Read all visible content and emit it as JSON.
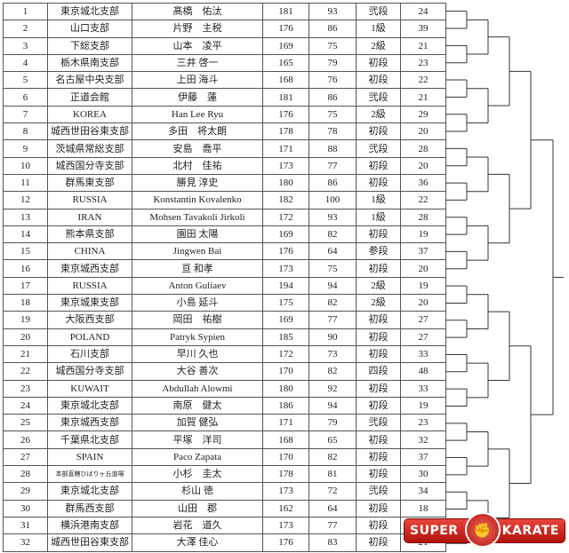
{
  "entries": [
    {
      "no": "1",
      "branch": "東京城北支部",
      "name": "髙橋　佑汰",
      "height": "181",
      "weight": "93",
      "rank": "弐段",
      "age": "24"
    },
    {
      "no": "2",
      "branch": "山口支部",
      "name": "片野　主税",
      "height": "176",
      "weight": "86",
      "rank": "1級",
      "age": "39"
    },
    {
      "no": "3",
      "branch": "下総支部",
      "name": "山本　凌平",
      "height": "169",
      "weight": "75",
      "rank": "2級",
      "age": "21"
    },
    {
      "no": "4",
      "branch": "栃木県南支部",
      "name": "三井 啓一",
      "height": "165",
      "weight": "79",
      "rank": "初段",
      "age": "23"
    },
    {
      "no": "5",
      "branch": "名古屋中央支部",
      "name": "上田 海斗",
      "height": "168",
      "weight": "76",
      "rank": "初段",
      "age": "22"
    },
    {
      "no": "6",
      "branch": "正道会館",
      "name": "伊藤　蓮",
      "height": "181",
      "weight": "86",
      "rank": "弐段",
      "age": "21"
    },
    {
      "no": "7",
      "branch": "KOREA",
      "name": "Han Lee Ryu",
      "height": "176",
      "weight": "75",
      "rank": "2級",
      "age": "29"
    },
    {
      "no": "8",
      "branch": "城西世田谷東支部",
      "name": "多田　将太朗",
      "height": "178",
      "weight": "78",
      "rank": "初段",
      "age": "20"
    },
    {
      "no": "9",
      "branch": "茨城県常総支部",
      "name": "安島　喬平",
      "height": "171",
      "weight": "88",
      "rank": "弐段",
      "age": "28"
    },
    {
      "no": "10",
      "branch": "城西国分寺支部",
      "name": "北村　佳祐",
      "height": "173",
      "weight": "77",
      "rank": "初段",
      "age": "20"
    },
    {
      "no": "11",
      "branch": "群馬東支部",
      "name": "勝見 淳史",
      "height": "180",
      "weight": "86",
      "rank": "初段",
      "age": "36"
    },
    {
      "no": "12",
      "branch": "RUSSIA",
      "name": "Konstantin Kovalenko",
      "height": "182",
      "weight": "100",
      "rank": "1級",
      "age": "22"
    },
    {
      "no": "13",
      "branch": "IRAN",
      "name": "Mohsen Tavakoli Jirkoli",
      "height": "172",
      "weight": "93",
      "rank": "1級",
      "age": "28"
    },
    {
      "no": "14",
      "branch": "熊本県支部",
      "name": "園田 太陽",
      "height": "169",
      "weight": "82",
      "rank": "初段",
      "age": "19"
    },
    {
      "no": "15",
      "branch": "CHINA",
      "name": "Jingwen Bai",
      "height": "176",
      "weight": "64",
      "rank": "参段",
      "age": "37"
    },
    {
      "no": "16",
      "branch": "東京城西支部",
      "name": "亘 和孝",
      "height": "173",
      "weight": "75",
      "rank": "初段",
      "age": "20"
    },
    {
      "no": "17",
      "branch": "RUSSIA",
      "name": "Anton Guliaev",
      "height": "194",
      "weight": "94",
      "rank": "2級",
      "age": "19"
    },
    {
      "no": "18",
      "branch": "東京城東支部",
      "name": "小島 延斗",
      "height": "175",
      "weight": "82",
      "rank": "2級",
      "age": "20"
    },
    {
      "no": "19",
      "branch": "大阪西支部",
      "name": "岡田　祐樹",
      "height": "169",
      "weight": "77",
      "rank": "初段",
      "age": "27"
    },
    {
      "no": "20",
      "branch": "POLAND",
      "name": "Patryk Sypien",
      "height": "185",
      "weight": "90",
      "rank": "初段",
      "age": "27"
    },
    {
      "no": "21",
      "branch": "石川支部",
      "name": "早川 久也",
      "height": "172",
      "weight": "73",
      "rank": "初段",
      "age": "33"
    },
    {
      "no": "22",
      "branch": "城西国分寺支部",
      "name": "大谷 善次",
      "height": "170",
      "weight": "82",
      "rank": "四段",
      "age": "48"
    },
    {
      "no": "23",
      "branch": "KUWAIT",
      "name": "Abdullah Alowmi",
      "height": "180",
      "weight": "92",
      "rank": "初段",
      "age": "33"
    },
    {
      "no": "24",
      "branch": "東京城北支部",
      "name": "南原　健太",
      "height": "186",
      "weight": "94",
      "rank": "初段",
      "age": "19"
    },
    {
      "no": "25",
      "branch": "東京城西支部",
      "name": "加賀 健弘",
      "height": "171",
      "weight": "79",
      "rank": "弐段",
      "age": "23"
    },
    {
      "no": "26",
      "branch": "千葉県北支部",
      "name": "平塚　洋司",
      "height": "168",
      "weight": "65",
      "rank": "初段",
      "age": "32"
    },
    {
      "no": "27",
      "branch": "SPAIN",
      "name": "Paco Zapata",
      "height": "170",
      "weight": "82",
      "rank": "初段",
      "age": "37"
    },
    {
      "no": "28",
      "branch": "本部直轄ひばりヶ丘道場",
      "name": "小杉　圭太",
      "height": "178",
      "weight": "81",
      "rank": "初段",
      "age": "30"
    },
    {
      "no": "29",
      "branch": "東京城北支部",
      "name": "杉山 徳",
      "height": "173",
      "weight": "72",
      "rank": "弐段",
      "age": "34"
    },
    {
      "no": "30",
      "branch": "群馬西支部",
      "name": "山田　郡",
      "height": "162",
      "weight": "64",
      "rank": "初段",
      "age": "18"
    },
    {
      "no": "31",
      "branch": "横浜港南支部",
      "name": "岩花　道久",
      "height": "173",
      "weight": "77",
      "rank": "初段",
      "age": ""
    },
    {
      "no": "32",
      "branch": "城西世田谷東支部",
      "name": "大澤 佳心",
      "height": "176",
      "weight": "83",
      "rank": "初段",
      "age": "21"
    }
  ],
  "logo": {
    "left": "SUPER",
    "right": "KARATE",
    "icon": "fist-icon",
    "color": "#c8201a"
  }
}
